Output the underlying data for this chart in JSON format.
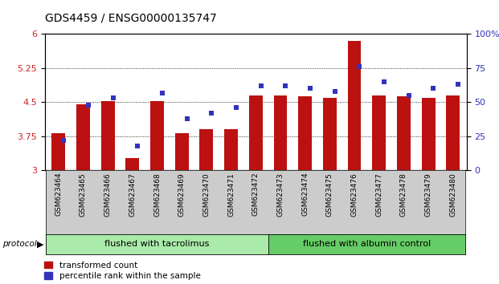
{
  "title": "GDS4459 / ENSG00000135747",
  "samples": [
    "GSM623464",
    "GSM623465",
    "GSM623466",
    "GSM623467",
    "GSM623468",
    "GSM623469",
    "GSM623470",
    "GSM623471",
    "GSM623472",
    "GSM623473",
    "GSM623474",
    "GSM623475",
    "GSM623476",
    "GSM623477",
    "GSM623478",
    "GSM623479",
    "GSM623480"
  ],
  "red_values": [
    3.82,
    4.45,
    4.52,
    3.27,
    4.52,
    3.82,
    3.9,
    3.9,
    4.65,
    4.65,
    4.63,
    4.6,
    5.85,
    4.65,
    4.63,
    4.6,
    4.65
  ],
  "blue_values": [
    22,
    48,
    53,
    18,
    57,
    38,
    42,
    46,
    62,
    62,
    60,
    58,
    76,
    65,
    55,
    60,
    63
  ],
  "ylim_left": [
    3,
    6
  ],
  "ylim_right": [
    0,
    100
  ],
  "yticks_left": [
    3,
    3.75,
    4.5,
    5.25,
    6
  ],
  "yticks_right": [
    0,
    25,
    50,
    75,
    100
  ],
  "red_color": "#BB1111",
  "blue_color": "#3333BB",
  "n_group1": 9,
  "group1_label": "flushed with tacrolimus",
  "group2_label": "flushed with albumin control",
  "protocol_label": "protocol",
  "legend1": "transformed count",
  "legend2": "percentile rank within the sample",
  "group1_bg": "#AAEAAA",
  "group2_bg": "#66CC66",
  "xlabel_bg": "#CCCCCC",
  "plot_bg": "#FFFFFF"
}
